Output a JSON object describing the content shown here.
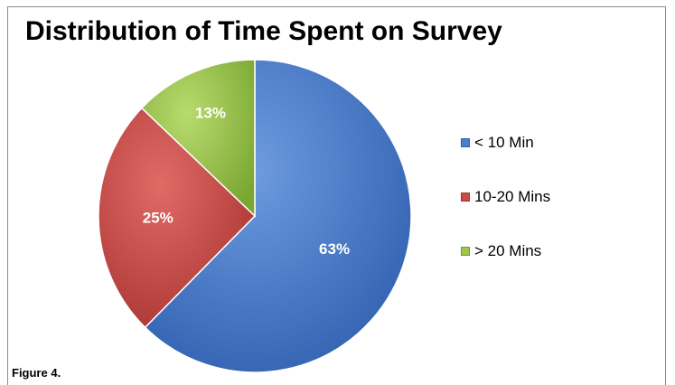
{
  "caption": "Figure 4.",
  "chart_data": {
    "type": "pie",
    "title": "Distribution of Time Spent on Survey",
    "categories": [
      "< 10 Min",
      "10-20 Mins",
      "> 20 Mins"
    ],
    "values": [
      63,
      25,
      13
    ],
    "labels": [
      "63%",
      "25%",
      "13%"
    ],
    "colors": [
      "#4a7fcf",
      "#cd4a47",
      "#9cc84a"
    ],
    "legend_position": "right",
    "start_angle": "top, clockwise"
  }
}
